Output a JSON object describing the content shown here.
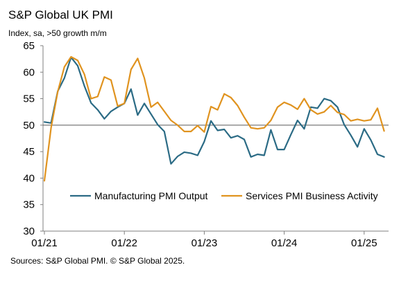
{
  "chart_data": {
    "type": "line",
    "title": "S&P Global UK PMI",
    "subtitle": "Index, sa, >50 growth m/m",
    "source": "Sources: S&P Global PMI. © S&P Global 2025.",
    "ylim": [
      30,
      65
    ],
    "y_ticks": [
      "30",
      "35",
      "40",
      "45",
      "50",
      "55",
      "60",
      "65"
    ],
    "x_ticks": [
      "01/21",
      "01/22",
      "01/23",
      "01/24",
      "01/25"
    ],
    "reference_line": 50,
    "legend_position": "bottom-right",
    "series": [
      {
        "name": "Manufacturing PMI Output",
        "color": "#2b6b85",
        "values": [
          50.6,
          50.4,
          56.4,
          58.9,
          62.8,
          61.2,
          57.4,
          54.2,
          52.9,
          51.2,
          52.6,
          53.4,
          54.1,
          56.8,
          51.9,
          54.1,
          52.1,
          50.1,
          48.8,
          42.7,
          44.1,
          44.9,
          44.7,
          44.3,
          46.9,
          50.8,
          49.0,
          49.2,
          47.6,
          48.0,
          47.3,
          44.0,
          44.5,
          44.3,
          49.1,
          45.4,
          45.4,
          48.2,
          50.9,
          49.3,
          53.4,
          53.2,
          55.0,
          54.6,
          53.4,
          50.1,
          48.1,
          45.9,
          49.3,
          47.2,
          44.5,
          44.0
        ]
      },
      {
        "name": "Services PMI Business Activity",
        "color": "#e0931f",
        "values": [
          39.5,
          49.5,
          56.3,
          61.0,
          62.9,
          62.2,
          59.6,
          55.0,
          55.4,
          59.1,
          58.5,
          53.6,
          54.1,
          60.5,
          62.6,
          58.9,
          53.4,
          54.3,
          52.6,
          50.9,
          50.0,
          48.8,
          48.8,
          49.9,
          48.7,
          53.5,
          52.9,
          55.9,
          55.2,
          53.7,
          51.5,
          49.5,
          49.3,
          49.5,
          50.9,
          53.4,
          54.3,
          53.8,
          53.0,
          55.0,
          52.9,
          52.1,
          52.5,
          53.7,
          52.4,
          52.0,
          50.8,
          51.1,
          50.8,
          51.0,
          53.2,
          48.9
        ]
      }
    ]
  }
}
